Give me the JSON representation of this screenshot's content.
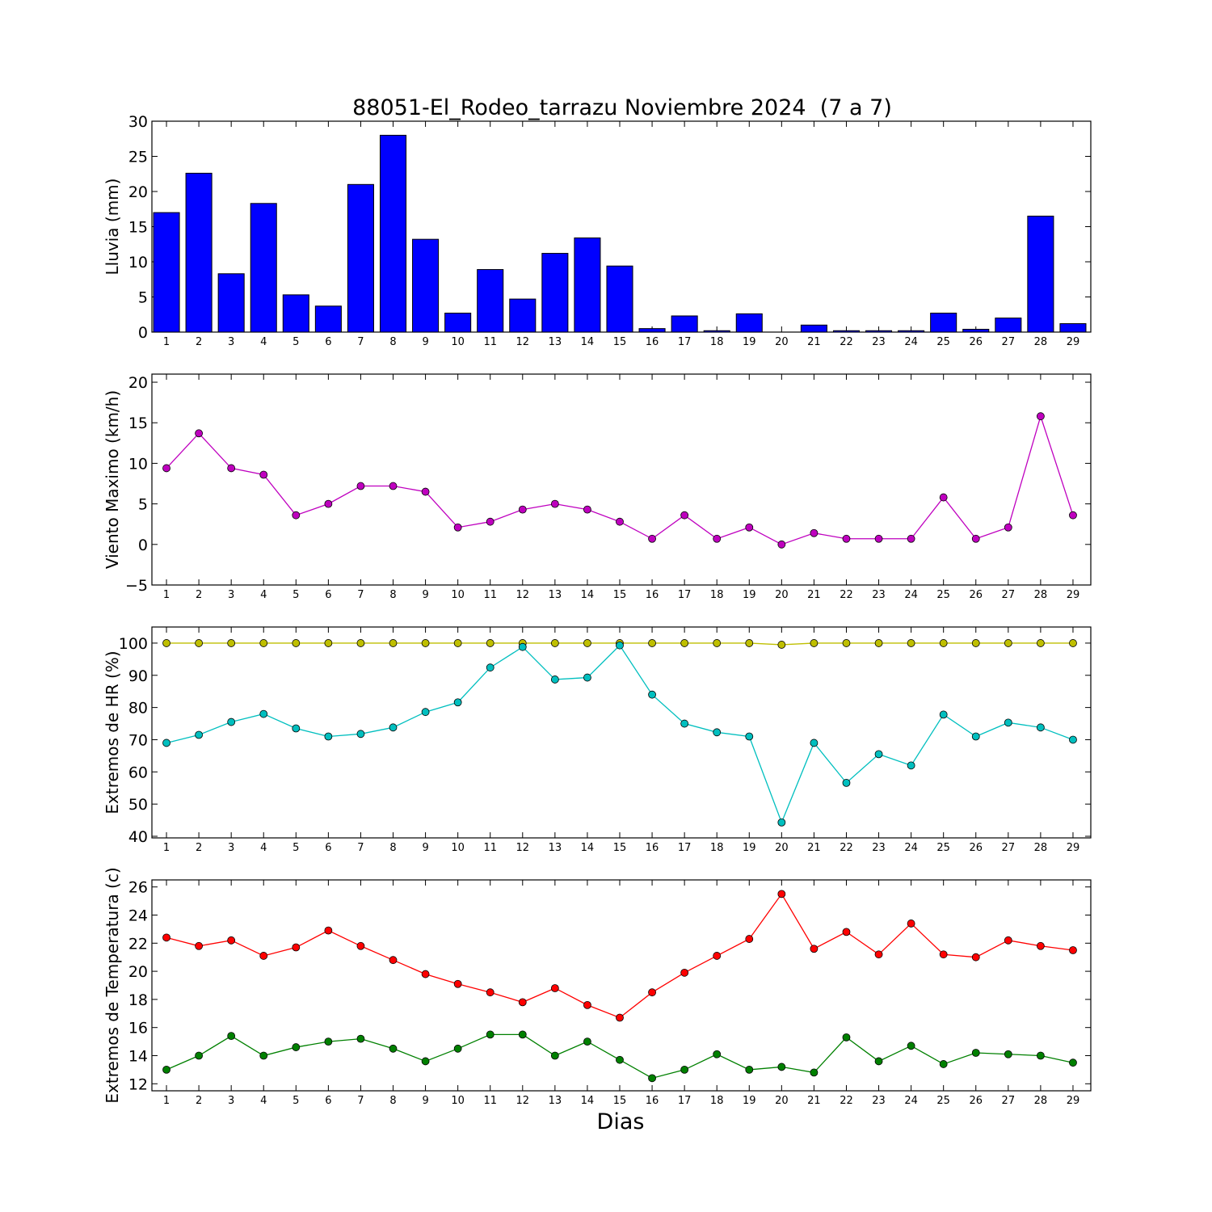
{
  "chart_data": {
    "type": "multi-panel",
    "title": "88051-El_Rodeo_tarrazu Noviembre 2024  (7 a 7)",
    "xlabel": "Dias",
    "x": [
      1,
      2,
      3,
      4,
      5,
      6,
      7,
      8,
      9,
      10,
      11,
      12,
      13,
      14,
      15,
      16,
      17,
      18,
      19,
      20,
      21,
      22,
      23,
      24,
      25,
      26,
      27,
      28,
      29
    ],
    "panels": [
      {
        "id": "rain",
        "type": "bar",
        "ylabel": "Lluvia (mm)",
        "ylim": [
          0,
          30
        ],
        "yticks": [
          0,
          5,
          10,
          15,
          20,
          25,
          30
        ],
        "series": [
          {
            "color": "#0000ff",
            "values": [
              17.0,
              22.6,
              8.3,
              18.3,
              5.3,
              3.7,
              21.0,
              28.0,
              13.2,
              2.7,
              8.9,
              4.7,
              11.2,
              13.4,
              9.4,
              0.5,
              2.3,
              0.2,
              2.6,
              0.0,
              1.0,
              0.2,
              0.2,
              0.2,
              2.7,
              0.4,
              2.0,
              16.5,
              1.2
            ]
          }
        ]
      },
      {
        "id": "wind",
        "type": "line",
        "ylabel": "Viento Maximo (km/h)",
        "ylim": [
          -5,
          21
        ],
        "yticks": [
          -5,
          0,
          5,
          10,
          15,
          20
        ],
        "series": [
          {
            "color": "#bf00bf",
            "values": [
              9.4,
              13.7,
              9.4,
              8.6,
              3.6,
              5.0,
              7.2,
              7.2,
              6.5,
              2.1,
              2.8,
              4.3,
              5.0,
              4.3,
              2.8,
              0.7,
              3.6,
              0.7,
              2.1,
              0.0,
              1.4,
              0.7,
              0.7,
              0.7,
              5.8,
              0.7,
              2.1,
              15.8,
              3.6
            ]
          }
        ]
      },
      {
        "id": "humidity",
        "type": "line",
        "ylabel": "Extremos de HR (%)",
        "ylim": [
          39.5,
          105
        ],
        "yticks": [
          40,
          50,
          60,
          70,
          80,
          90,
          100
        ],
        "series": [
          {
            "color": "#bfbf00",
            "values": [
              100,
              100,
              100,
              100,
              100,
              100,
              100,
              100,
              100,
              100,
              100,
              100,
              100,
              100,
              100,
              100,
              100,
              100,
              100,
              99.5,
              100,
              100,
              100,
              100,
              100,
              100,
              100,
              100,
              100
            ]
          },
          {
            "color": "#00bfbf",
            "values": [
              69,
              71.5,
              75.5,
              78,
              73.5,
              71,
              71.8,
              73.8,
              78.6,
              81.6,
              92.4,
              98.8,
              88.7,
              89.3,
              99.3,
              84,
              75,
              72.3,
              71,
              44.3,
              69,
              56.6,
              65.5,
              62,
              77.8,
              71,
              75.3,
              73.8,
              70
            ]
          }
        ]
      },
      {
        "id": "temperature",
        "type": "line",
        "ylabel": "Extremos de Temperatura (c)",
        "ylim": [
          11.5,
          26.5
        ],
        "yticks": [
          12,
          14,
          16,
          18,
          20,
          22,
          24,
          26
        ],
        "series": [
          {
            "color": "#ff0000",
            "values": [
              22.4,
              21.8,
              22.2,
              21.1,
              21.7,
              22.9,
              21.8,
              20.8,
              19.8,
              19.1,
              18.5,
              17.8,
              18.8,
              17.6,
              16.7,
              18.5,
              19.9,
              21.1,
              22.3,
              25.5,
              21.6,
              22.8,
              21.2,
              23.4,
              21.2,
              21.0,
              22.2,
              21.8,
              21.5
            ]
          },
          {
            "color": "#008000",
            "values": [
              13.0,
              14.0,
              15.4,
              14.0,
              14.6,
              15.0,
              15.2,
              14.5,
              13.6,
              14.5,
              15.5,
              15.5,
              14.0,
              15.0,
              13.7,
              12.4,
              13.0,
              14.1,
              13.0,
              13.2,
              12.8,
              15.3,
              13.6,
              14.7,
              13.4,
              14.2,
              14.1,
              14.0,
              13.5
            ]
          }
        ]
      }
    ]
  }
}
